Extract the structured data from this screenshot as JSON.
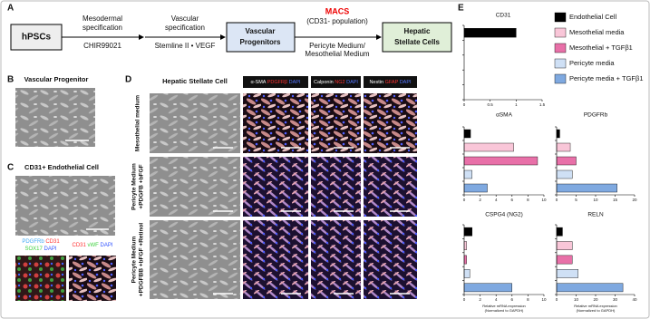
{
  "panels": {
    "a": "A",
    "b": "B",
    "c": "C",
    "d": "D",
    "e": "E"
  },
  "flow": {
    "start": "hPSCs",
    "step1": [
      "Mesodermal",
      "specification"
    ],
    "step1_factor": "CHIR99021",
    "step2": [
      "Vascular",
      "specification"
    ],
    "step2_factor": "Stemline II • VEGF",
    "mid": [
      "Vascular",
      "Progenitors"
    ],
    "method": "MACS",
    "method_note": "(CD31- population)",
    "medium": [
      "Pericyte Medium/",
      "Mesothelial Medium"
    ],
    "end": [
      "Hepatic",
      "Stellate Cells"
    ]
  },
  "panel_b": {
    "title": "Vascular Progenitor"
  },
  "panel_c": {
    "title": "CD31+ Endothelial Cell",
    "stains_left": [
      [
        {
          "text": "PDGFRb",
          "color": "#3fa9f5"
        },
        {
          "text": "CD31",
          "color": "#ff3333"
        }
      ],
      [
        {
          "text": "SOX17",
          "color": "#3fd13f"
        },
        {
          "text": "DAPI",
          "color": "#3355ff"
        }
      ]
    ],
    "stains_right": [
      [
        {
          "text": "CD31",
          "color": "#ff3333"
        },
        {
          "text": "vWF",
          "color": "#3fd13f"
        },
        {
          "text": "DAPI",
          "color": "#3355ff"
        }
      ]
    ]
  },
  "panel_d": {
    "title": "Hepatic Stellate Cell",
    "headers": [
      [
        {
          "text": "α-SMA",
          "color": "#ffffff"
        },
        {
          "text": "PDGFRβ",
          "color": "#ff3333"
        },
        {
          "text": "DAPI",
          "color": "#5577ff"
        }
      ],
      [
        {
          "text": "Calponin",
          "color": "#ffffff"
        },
        {
          "text": "NG2",
          "color": "#ff3333"
        },
        {
          "text": "DAPI",
          "color": "#5577ff"
        }
      ],
      [
        {
          "text": "Nestin",
          "color": "#ffffff"
        },
        {
          "text": "GFAP",
          "color": "#ff3333"
        },
        {
          "text": "DAPI",
          "color": "#5577ff"
        }
      ]
    ],
    "rows": [
      [
        "Mesothelial medium"
      ],
      [
        "Pericyte Medium",
        "+PDGFB +bFGF"
      ],
      [
        "Pericyte Medium",
        "+PDGFBB +bFGF +Retinol"
      ]
    ]
  },
  "legend": [
    {
      "name": "Endothelial Cell",
      "color": "#000000"
    },
    {
      "name": "Mesothelial media",
      "color": "#f9c6d8"
    },
    {
      "name": "Mesothelial + TGFβ1",
      "color": "#e870a8"
    },
    {
      "name": "Pericyte media",
      "color": "#cfe0f5"
    },
    {
      "name": "Pericyte media + TGFβ1",
      "color": "#7fa9e0"
    }
  ],
  "chart_data": [
    {
      "type": "bar",
      "title": "CD31",
      "values": [
        1.0
      ],
      "xlim": [
        0,
        1.5
      ],
      "xticks": [
        0,
        0.5,
        1,
        1.5
      ]
    },
    {
      "type": "bar",
      "title": "αSMA",
      "values": [
        0.8,
        6.2,
        9.2,
        1.0,
        2.9
      ],
      "xlim": [
        0,
        10
      ],
      "xticks": [
        0,
        2,
        4,
        6,
        8,
        10
      ]
    },
    {
      "type": "bar",
      "title": "PDGFRb",
      "values": [
        0.8,
        3.5,
        5,
        4,
        15.5
      ],
      "xlim": [
        0,
        20
      ],
      "xticks": [
        0,
        5,
        10,
        15,
        20
      ]
    },
    {
      "type": "bar",
      "title": "CSPG4 (NG2)",
      "values": [
        1.0,
        0.3,
        0.3,
        0.7,
        6.0
      ],
      "xlim": [
        0,
        10
      ],
      "xticks": [
        0,
        2,
        4,
        6,
        8,
        10
      ],
      "xlabel": [
        "Relative mRNA expression",
        "(Normalized to GAPDH)"
      ]
    },
    {
      "type": "bar",
      "title": "RELN",
      "values": [
        3,
        8,
        8,
        11,
        34
      ],
      "xlim": [
        0,
        40
      ],
      "xticks": [
        0,
        10,
        20,
        30,
        40
      ],
      "xlabel": [
        "Relative mRNA expression",
        "(Normalized to GAPDH)"
      ]
    }
  ]
}
